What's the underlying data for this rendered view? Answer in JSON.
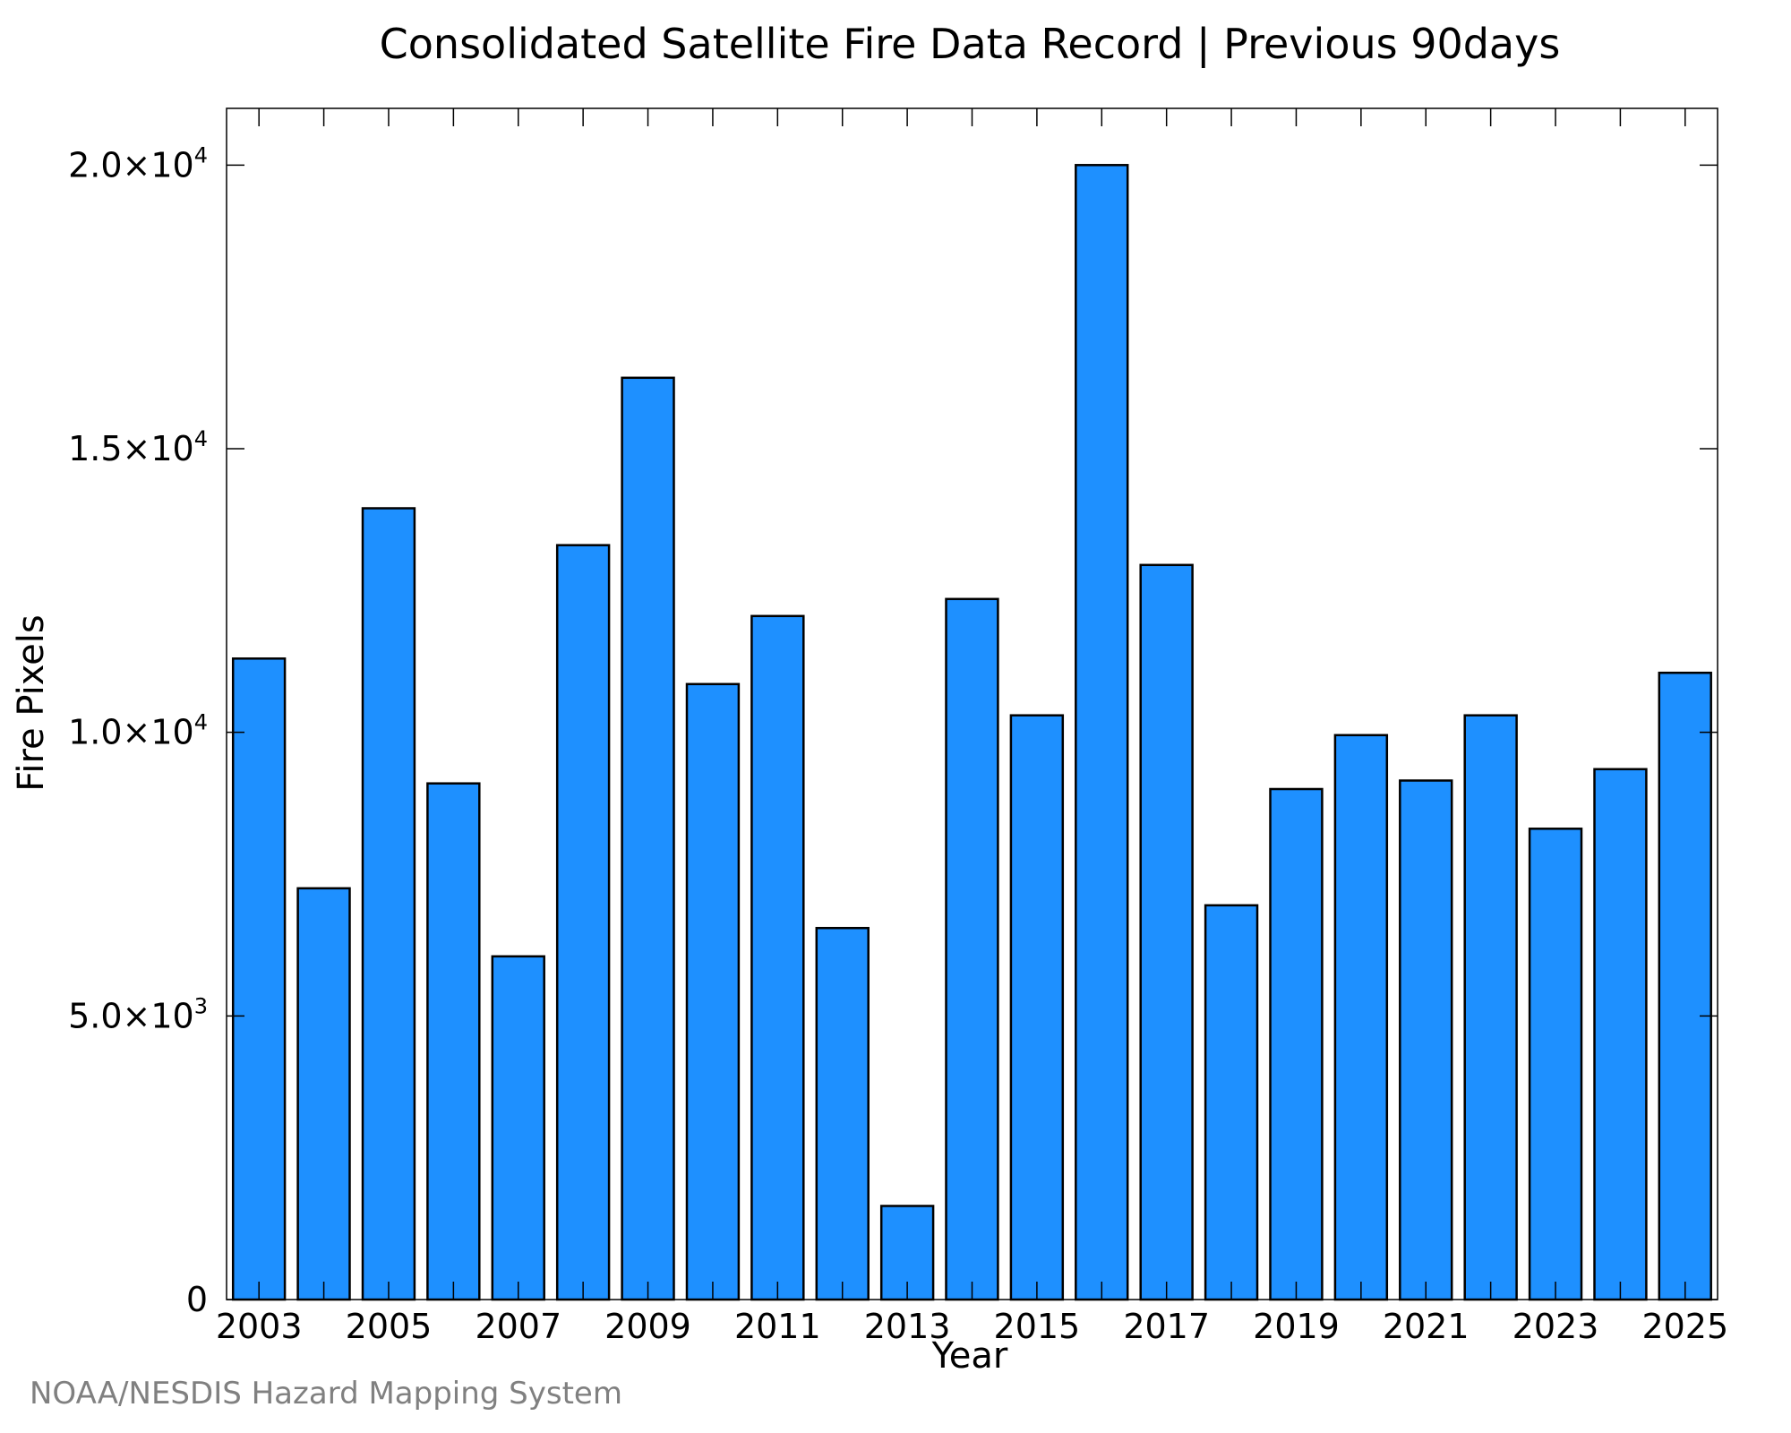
{
  "chart_data": {
    "type": "bar",
    "title": "Consolidated Satellite Fire Data Record | Previous 90days",
    "xlabel": "Year",
    "ylabel": "Fire Pixels",
    "categories": [
      "2003",
      "2004",
      "2005",
      "2006",
      "2007",
      "2008",
      "2009",
      "2010",
      "2011",
      "2012",
      "2013",
      "2014",
      "2015",
      "2016",
      "2017",
      "2018",
      "2019",
      "2020",
      "2021",
      "2022",
      "2023",
      "2024",
      "2025"
    ],
    "values": [
      11300,
      7250,
      13950,
      9100,
      6050,
      13300,
      16250,
      10850,
      12050,
      6550,
      1650,
      12350,
      10300,
      20000,
      12950,
      6950,
      9000,
      9950,
      9150,
      10300,
      8300,
      9350,
      11050
    ],
    "x_tick_labels": [
      "2003",
      "2005",
      "2007",
      "2009",
      "2011",
      "2013",
      "2015",
      "2017",
      "2019",
      "2021",
      "2023",
      "2025"
    ],
    "y_ticks": [
      {
        "value": 0,
        "mantissa": "0",
        "exponent": ""
      },
      {
        "value": 5000,
        "mantissa": "5.0×10",
        "exponent": "3"
      },
      {
        "value": 10000,
        "mantissa": "1.0×10",
        "exponent": "4"
      },
      {
        "value": 15000,
        "mantissa": "1.5×10",
        "exponent": "4"
      },
      {
        "value": 20000,
        "mantissa": "2.0×10",
        "exponent": "4"
      }
    ],
    "ylim": [
      0,
      21000
    ],
    "grid": false,
    "bar_color": "#1E90FF",
    "bar_edge_color": "#000000",
    "credit": "NOAA/NESDIS Hazard Mapping System"
  }
}
